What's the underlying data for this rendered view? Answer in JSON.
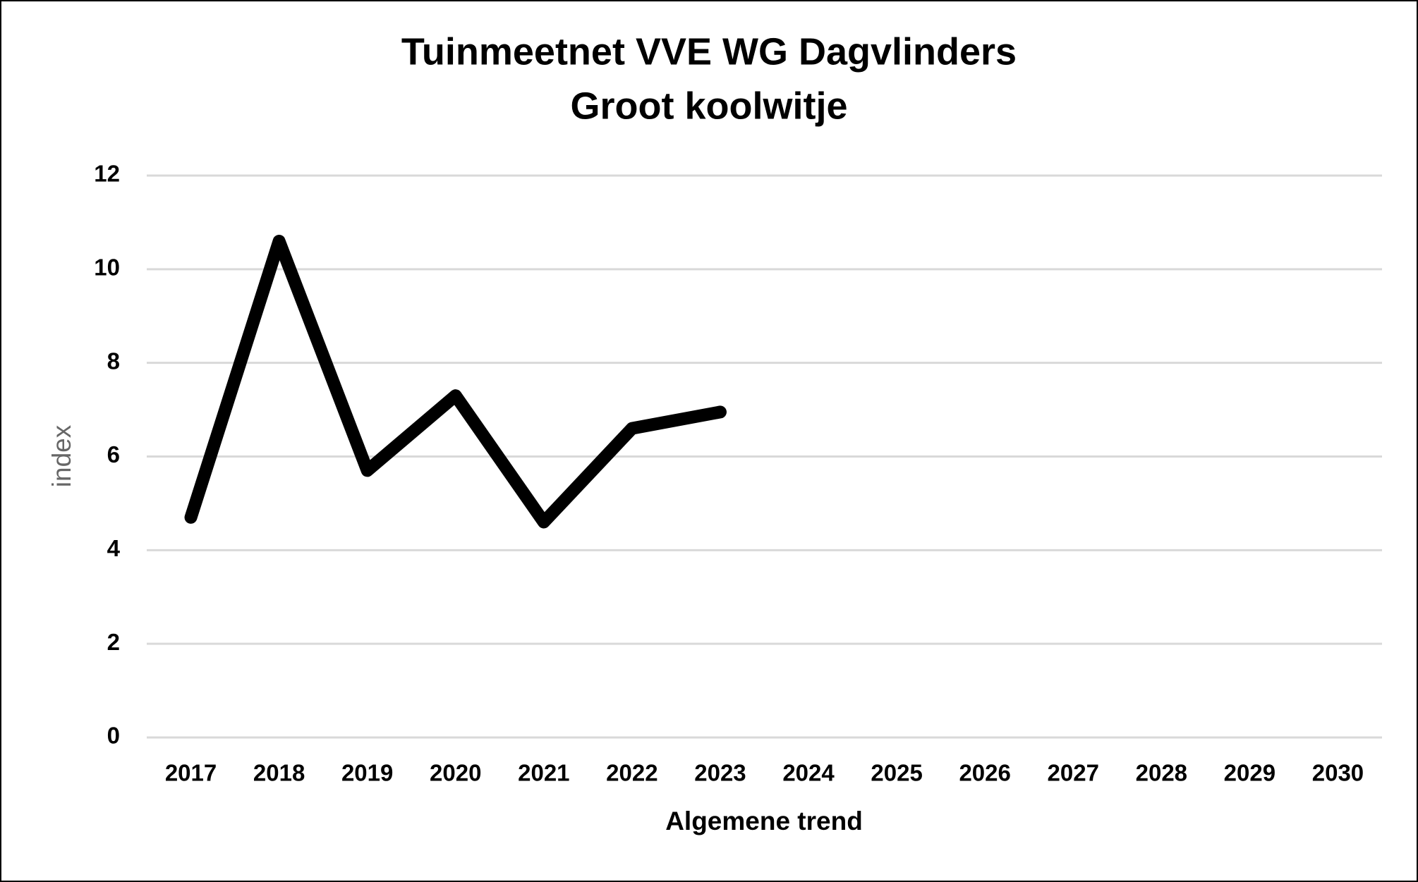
{
  "chart_data": {
    "type": "line",
    "title": "Tuinmeetnet VVE WG Dagvlinders",
    "subtitle": "Groot koolwitje",
    "x_label": "Algemene trend",
    "y_label": "index",
    "categories": [
      "2017",
      "2018",
      "2019",
      "2020",
      "2021",
      "2022",
      "2023",
      "2024",
      "2025",
      "2026",
      "2027",
      "2028",
      "2029",
      "2030"
    ],
    "series": [
      {
        "color": "#000000",
        "values": [
          4.7,
          10.6,
          5.7,
          7.3,
          4.6,
          6.6,
          6.95,
          null,
          null,
          null,
          null,
          null,
          null,
          null
        ]
      }
    ],
    "ylim": [
      0,
      12
    ],
    "yticks": [
      0,
      2,
      4,
      6,
      8,
      10,
      12
    ],
    "grid": true
  }
}
